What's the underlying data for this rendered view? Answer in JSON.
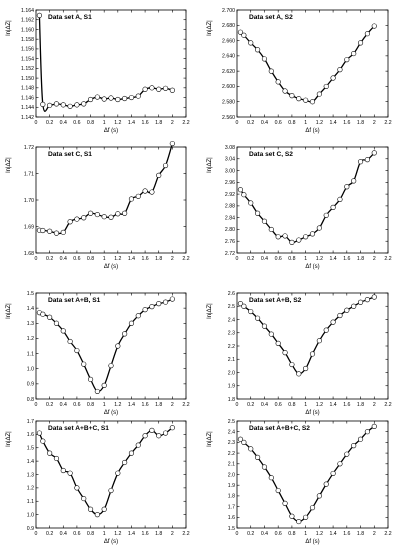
{
  "figure": {
    "x_tick_labels": [
      "0",
      "0.2",
      "0.4",
      "0.6",
      "0.8",
      "1",
      "1.2",
      "1.4",
      "1.6",
      "1.8",
      "2",
      "2.2"
    ]
  },
  "chart_data": [
    {
      "type": "line",
      "title": "Data set A, S1",
      "xlabel": "Δf (s)",
      "ylabel": "ln|ΔZ|",
      "xlim": [
        0,
        2.2
      ],
      "ylim": [
        1.142,
        1.164
      ],
      "grid": false,
      "x": [
        0.05,
        0.1,
        0.2,
        0.3,
        0.4,
        0.5,
        0.6,
        0.7,
        0.8,
        0.9,
        1.0,
        1.1,
        1.2,
        1.3,
        1.4,
        1.5,
        1.6,
        1.7,
        1.8,
        1.9,
        2.0
      ],
      "y": [
        1.1629,
        1.1446,
        1.1444,
        1.1447,
        1.1445,
        1.1442,
        1.1445,
        1.1447,
        1.1456,
        1.1461,
        1.1457,
        1.1459,
        1.1456,
        1.1458,
        1.146,
        1.1463,
        1.1477,
        1.148,
        1.1477,
        1.1479,
        1.1475
      ],
      "y_tick_labels": [
        "1.142",
        "1.144",
        "1.146",
        "1.148",
        "1.150",
        "1.152",
        "1.154",
        "1.156",
        "1.158",
        "1.160",
        "1.162",
        "1.164"
      ]
    },
    {
      "type": "line",
      "title": "Data set A, S2",
      "xlabel": "Δf (s)",
      "ylabel": "ln|ΔZ|",
      "xlim": [
        0,
        2.2
      ],
      "ylim": [
        2.56,
        2.7
      ],
      "grid": false,
      "x": [
        0.05,
        0.1,
        0.2,
        0.3,
        0.4,
        0.5,
        0.6,
        0.7,
        0.8,
        0.9,
        1.0,
        1.1,
        1.2,
        1.3,
        1.4,
        1.5,
        1.6,
        1.7,
        1.8,
        1.9,
        2.0
      ],
      "y": [
        2.671,
        2.667,
        2.657,
        2.648,
        2.636,
        2.62,
        2.606,
        2.594,
        2.588,
        2.584,
        2.582,
        2.58,
        2.59,
        2.6,
        2.611,
        2.622,
        2.635,
        2.643,
        2.657,
        2.669,
        2.679
      ],
      "y_tick_labels": [
        "2.560",
        "2.580",
        "2.600",
        "2.620",
        "2.640",
        "2.660",
        "2.680",
        "2.700"
      ]
    },
    {
      "type": "line",
      "title": "Data set C, S1",
      "xlabel": "Δf (s)",
      "ylabel": "ln|ΔZ|",
      "xlim": [
        0,
        2.2
      ],
      "ylim": [
        1.68,
        1.72
      ],
      "grid": false,
      "x": [
        0.05,
        0.1,
        0.2,
        0.3,
        0.4,
        0.5,
        0.6,
        0.7,
        0.8,
        0.9,
        1.0,
        1.1,
        1.2,
        1.3,
        1.4,
        1.5,
        1.6,
        1.7,
        1.8,
        1.9,
        2.0
      ],
      "y": [
        1.6886,
        1.6885,
        1.6882,
        1.6875,
        1.6878,
        1.6918,
        1.6928,
        1.6933,
        1.695,
        1.6945,
        1.6937,
        1.6935,
        1.6948,
        1.695,
        1.7004,
        1.7014,
        1.7034,
        1.703,
        1.7093,
        1.713,
        1.7213
      ],
      "y_tick_labels": [
        "1.68",
        "1.69",
        "1.70",
        "1.71",
        "1.72"
      ]
    },
    {
      "type": "line",
      "title": "Data set C, S2",
      "xlabel": "Δf (s)",
      "ylabel": "ln|ΔZ|",
      "xlim": [
        0,
        2.2
      ],
      "ylim": [
        2.72,
        3.08
      ],
      "grid": false,
      "x": [
        0.05,
        0.1,
        0.2,
        0.3,
        0.4,
        0.5,
        0.6,
        0.7,
        0.8,
        0.9,
        1.0,
        1.1,
        1.2,
        1.3,
        1.4,
        1.5,
        1.6,
        1.7,
        1.8,
        1.9,
        2.0
      ],
      "y": [
        2.935,
        2.918,
        2.89,
        2.855,
        2.828,
        2.8,
        2.775,
        2.778,
        2.756,
        2.764,
        2.775,
        2.785,
        2.805,
        2.848,
        2.875,
        2.902,
        2.945,
        2.965,
        3.03,
        3.037,
        3.06
      ],
      "y_tick_labels": [
        "2.72",
        "2.76",
        "2.80",
        "2.84",
        "2.88",
        "2.92",
        "2.96",
        "3.00",
        "3.04",
        "3.08"
      ]
    },
    {
      "type": "line",
      "title": "Data set A+B, S1",
      "xlabel": "Δf (s)",
      "ylabel": "ln|ΔZ|",
      "xlim": [
        0,
        2.2
      ],
      "ylim": [
        0.8,
        1.5
      ],
      "grid": false,
      "x": [
        0.05,
        0.1,
        0.2,
        0.3,
        0.4,
        0.5,
        0.6,
        0.7,
        0.8,
        0.9,
        1.0,
        1.1,
        1.2,
        1.3,
        1.4,
        1.5,
        1.6,
        1.7,
        1.8,
        1.9,
        2.0
      ],
      "y": [
        1.37,
        1.36,
        1.34,
        1.3,
        1.25,
        1.18,
        1.12,
        1.03,
        0.93,
        0.85,
        0.89,
        1.02,
        1.15,
        1.23,
        1.3,
        1.35,
        1.39,
        1.41,
        1.43,
        1.44,
        1.46
      ],
      "y_tick_labels": [
        "0.8",
        "0.9",
        "1.0",
        "1.1",
        "1.2",
        "1.3",
        "1.4",
        "1.5"
      ]
    },
    {
      "type": "line",
      "title": "Data set A+B, S2",
      "xlabel": "Δf (s)",
      "ylabel": "ln|ΔZ|",
      "xlim": [
        0,
        2.2
      ],
      "ylim": [
        1.8,
        2.6
      ],
      "grid": false,
      "x": [
        0.05,
        0.1,
        0.2,
        0.3,
        0.4,
        0.5,
        0.6,
        0.7,
        0.8,
        0.9,
        1.0,
        1.1,
        1.2,
        1.3,
        1.4,
        1.5,
        1.6,
        1.7,
        1.8,
        1.9,
        2.0
      ],
      "y": [
        2.52,
        2.5,
        2.46,
        2.41,
        2.35,
        2.29,
        2.22,
        2.15,
        2.06,
        1.99,
        2.03,
        2.14,
        2.24,
        2.32,
        2.38,
        2.43,
        2.47,
        2.5,
        2.53,
        2.55,
        2.57
      ],
      "y_tick_labels": [
        "1.8",
        "1.9",
        "2.0",
        "2.1",
        "2.2",
        "2.3",
        "2.4",
        "2.5",
        "2.6"
      ]
    },
    {
      "type": "line",
      "title": "Data set A+B+C, S1",
      "xlabel": "Δf (s)",
      "ylabel": "ln|ΔZ|",
      "xlim": [
        0,
        2.2
      ],
      "ylim": [
        0.9,
        1.7
      ],
      "grid": false,
      "x": [
        0.05,
        0.1,
        0.2,
        0.3,
        0.4,
        0.5,
        0.6,
        0.7,
        0.8,
        0.9,
        1.0,
        1.1,
        1.2,
        1.3,
        1.4,
        1.5,
        1.6,
        1.7,
        1.8,
        1.9,
        2.0
      ],
      "y": [
        1.61,
        1.55,
        1.46,
        1.42,
        1.33,
        1.31,
        1.2,
        1.12,
        1.04,
        1.0,
        1.04,
        1.18,
        1.31,
        1.39,
        1.46,
        1.52,
        1.59,
        1.63,
        1.59,
        1.61,
        1.65
      ],
      "y_tick_labels": [
        "0.9",
        "1.0",
        "1.1",
        "1.2",
        "1.3",
        "1.4",
        "1.5",
        "1.6",
        "1.7"
      ]
    },
    {
      "type": "line",
      "title": "Data set A+B+C, S2",
      "xlabel": "Δf (s)",
      "ylabel": "ln|ΔZ|",
      "xlim": [
        0,
        2.2
      ],
      "ylim": [
        1.5,
        2.5
      ],
      "grid": false,
      "x": [
        0.05,
        0.1,
        0.2,
        0.3,
        0.4,
        0.5,
        0.6,
        0.7,
        0.8,
        0.9,
        1.0,
        1.1,
        1.2,
        1.3,
        1.4,
        1.5,
        1.6,
        1.7,
        1.8,
        1.9,
        2.0
      ],
      "y": [
        2.33,
        2.3,
        2.24,
        2.16,
        2.07,
        1.97,
        1.85,
        1.73,
        1.61,
        1.56,
        1.6,
        1.69,
        1.8,
        1.91,
        2.01,
        2.1,
        2.19,
        2.27,
        2.33,
        2.4,
        2.45
      ],
      "y_tick_labels": [
        "1.5",
        "1.6",
        "1.7",
        "1.8",
        "1.9",
        "2.0",
        "2.1",
        "2.2",
        "2.3",
        "2.4",
        "2.5"
      ]
    }
  ]
}
